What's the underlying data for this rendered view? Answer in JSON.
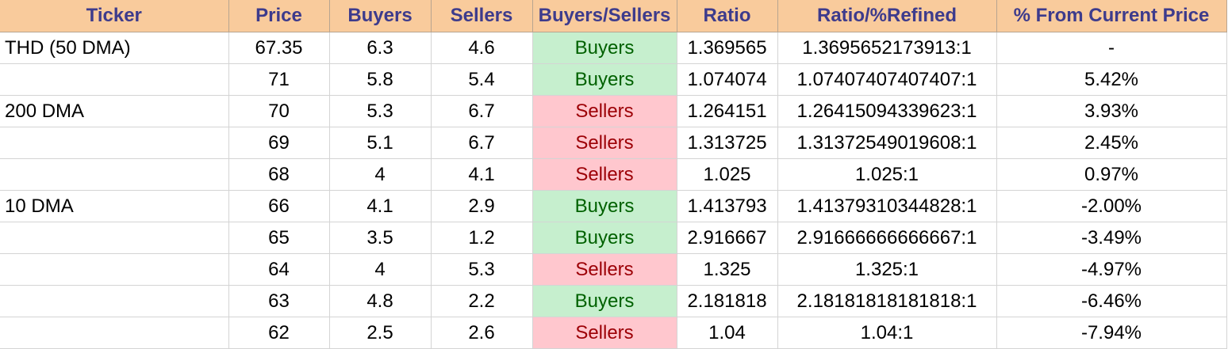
{
  "table": {
    "headers": [
      "Ticker",
      "Price",
      "Buyers",
      "Sellers",
      "Buyers/Sellers",
      "Ratio",
      "Ratio/%Refined",
      "% From Current Price"
    ],
    "rows": [
      {
        "ticker": "THD (50 DMA)",
        "price": "67.35",
        "buyers": "6.3",
        "sellers": "4.6",
        "side": "Buyers",
        "ratio": "1.369565",
        "refined": "1.3695652173913:1",
        "pct": "-"
      },
      {
        "ticker": "",
        "price": "71",
        "buyers": "5.8",
        "sellers": "5.4",
        "side": "Buyers",
        "ratio": "1.074074",
        "refined": "1.07407407407407:1",
        "pct": "5.42%"
      },
      {
        "ticker": "200 DMA",
        "price": "70",
        "buyers": "5.3",
        "sellers": "6.7",
        "side": "Sellers",
        "ratio": "1.264151",
        "refined": "1.26415094339623:1",
        "pct": "3.93%"
      },
      {
        "ticker": "",
        "price": "69",
        "buyers": "5.1",
        "sellers": "6.7",
        "side": "Sellers",
        "ratio": "1.313725",
        "refined": "1.31372549019608:1",
        "pct": "2.45%"
      },
      {
        "ticker": "",
        "price": "68",
        "buyers": "4",
        "sellers": "4.1",
        "side": "Sellers",
        "ratio": "1.025",
        "refined": "1.025:1",
        "pct": "0.97%"
      },
      {
        "ticker": "10 DMA",
        "price": "66",
        "buyers": "4.1",
        "sellers": "2.9",
        "side": "Buyers",
        "ratio": "1.413793",
        "refined": "1.41379310344828:1",
        "pct": "-2.00%"
      },
      {
        "ticker": "",
        "price": "65",
        "buyers": "3.5",
        "sellers": "1.2",
        "side": "Buyers",
        "ratio": "2.916667",
        "refined": "2.91666666666667:1",
        "pct": "-3.49%"
      },
      {
        "ticker": "",
        "price": "64",
        "buyers": "4",
        "sellers": "5.3",
        "side": "Sellers",
        "ratio": "1.325",
        "refined": "1.325:1",
        "pct": "-4.97%"
      },
      {
        "ticker": "",
        "price": "63",
        "buyers": "4.8",
        "sellers": "2.2",
        "side": "Buyers",
        "ratio": "2.181818",
        "refined": "2.18181818181818:1",
        "pct": "-6.46%"
      },
      {
        "ticker": "",
        "price": "62",
        "buyers": "2.5",
        "sellers": "2.6",
        "side": "Sellers",
        "ratio": "1.04",
        "refined": "1.04:1",
        "pct": "-7.94%"
      }
    ]
  },
  "colors": {
    "header_bg": "#f9cb9c",
    "header_text": "#3d3b8c",
    "buyers_bg": "#c6efce",
    "buyers_text": "#006100",
    "sellers_bg": "#ffc7ce",
    "sellers_text": "#9c0006"
  }
}
